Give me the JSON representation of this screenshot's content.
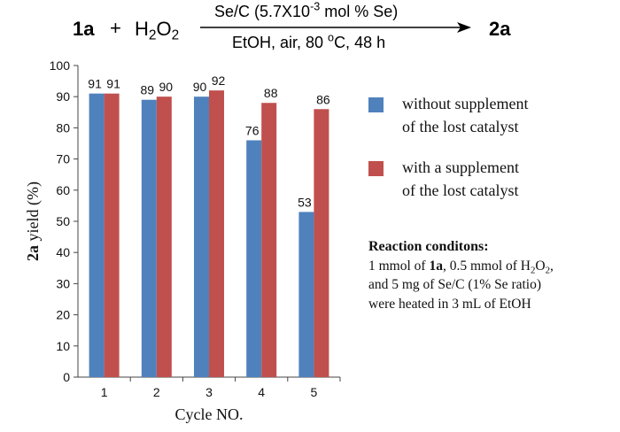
{
  "scheme": {
    "reactant": "1a",
    "plus": "+",
    "reagent_main": "H",
    "reagent_sub1": "2",
    "reagent_mid": "O",
    "reagent_sub2": "2",
    "catalyst_prefix": "Se/C (5.7X10",
    "catalyst_exp": "-3",
    "catalyst_suffix": " mol % Se)",
    "conditions_pre": "EtOH, air, 80 ",
    "conditions_deg": "o",
    "conditions_post": "C, 48 h",
    "product": "2a"
  },
  "legend": {
    "items": [
      {
        "line1": "without supplement",
        "line2": "of the lost catalyst"
      },
      {
        "line1": "with a supplement",
        "line2": "of the lost catalyst"
      }
    ]
  },
  "conditions": {
    "title": "Reaction conditons:",
    "l1_a": "1 mmol of ",
    "l1_b": "1a",
    "l1_c": ", 0.5 mmol of H",
    "l1_d": "2",
    "l1_e": "O",
    "l1_f": "2",
    "l1_g": ",",
    "l2": "and  5 mg of Se/C (1% Se ratio)",
    "l3": "were heated in 3 mL of EtOH"
  },
  "chart_data": {
    "type": "bar",
    "categories": [
      "1",
      "2",
      "3",
      "4",
      "5"
    ],
    "series": [
      {
        "name": "without supplement of the lost catalyst",
        "color": "#4f81bd",
        "values": [
          91,
          89,
          90,
          76,
          53
        ]
      },
      {
        "name": "with a supplement of the lost catalyst",
        "color": "#c0504d",
        "values": [
          91,
          90,
          92,
          88,
          86
        ]
      }
    ],
    "xlabel": "Cycle NO.",
    "ylabel_bold": "2a",
    "ylabel_rest": " yield (%)",
    "ylim": [
      0,
      100
    ],
    "yticks": [
      0,
      10,
      20,
      30,
      40,
      50,
      60,
      70,
      80,
      90,
      100
    ],
    "grid": false,
    "legend_position": "right"
  }
}
